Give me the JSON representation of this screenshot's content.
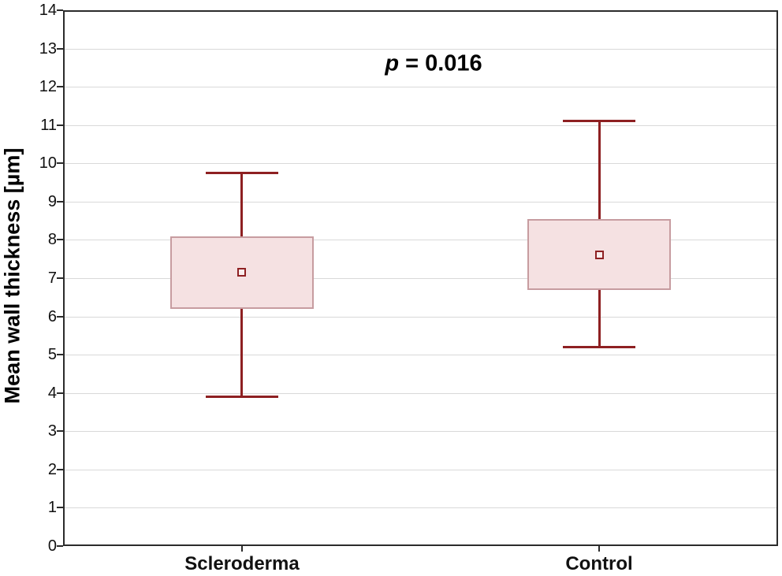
{
  "chart_data": {
    "type": "box",
    "title": "",
    "xlabel": "",
    "ylabel": "Mean wall thickness [µm]",
    "ylim": [
      0,
      14
    ],
    "yticks": [
      0,
      1,
      2,
      3,
      4,
      5,
      6,
      7,
      8,
      9,
      10,
      11,
      12,
      13,
      14
    ],
    "grid": "horizontal",
    "legend_position": "none",
    "categories": [
      "Scleroderma",
      "Control"
    ],
    "series": [
      {
        "name": "Scleroderma",
        "whisker_low": 3.9,
        "q1": 6.2,
        "mean": 7.15,
        "q3": 8.1,
        "whisker_high": 9.75
      },
      {
        "name": "Control",
        "whisker_low": 5.2,
        "q1": 6.7,
        "mean": 7.6,
        "q3": 8.55,
        "whisker_high": 11.1
      }
    ],
    "annotation": {
      "symbol": "p",
      "rest": " = 0.016"
    },
    "colors": {
      "whisker": "#8e2022",
      "box_border": "#c79ca0",
      "box_fill": "#f5e1e2",
      "marker_border": "#8e2022",
      "marker_fill": "#f9eded",
      "gridline": "#d9d9d9",
      "frame": "#2b2b2b",
      "text": "#000000",
      "background": "#ffffff"
    }
  }
}
